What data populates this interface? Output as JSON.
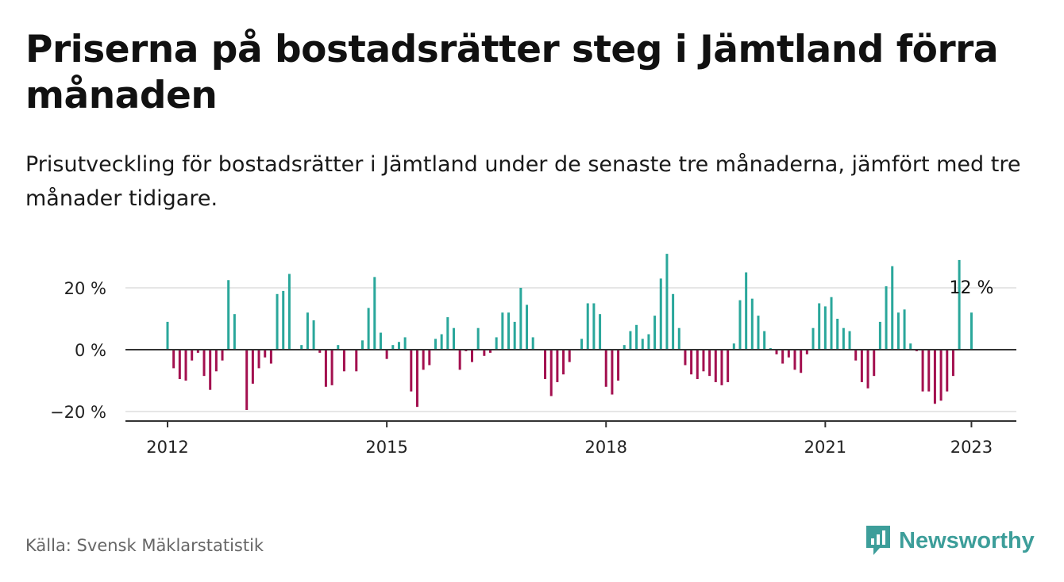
{
  "title": "Priserna på bostadsrätter steg i Jämtland förra månaden",
  "subtitle": "Prisutveckling för bostadsrätter i Jämtland under de senaste tre månaderna, jämfört med tre månader tidigare.",
  "source": "Källa: Svensk Mäklarstatistik",
  "logo": {
    "text": "Newsworthy",
    "icon": "newsworthy-logo-icon"
  },
  "colors": {
    "positive": "#2aa79b",
    "negative": "#a3104f",
    "axis": "#333333",
    "grid": "#dddddd",
    "logo": "#3d9e9a"
  },
  "chart_data": {
    "type": "bar",
    "start": "2012-01",
    "x_tick_labels": [
      "2012",
      "2015",
      "2018",
      "2021",
      "2023"
    ],
    "y_tick_labels": [
      "20 %",
      "0 %",
      "−20 %"
    ],
    "y_ticks": [
      20,
      0,
      -20
    ],
    "ylim": [
      -23,
      31
    ],
    "grid": true,
    "last_value_label": "12 %",
    "values": [
      9,
      -6,
      -9.5,
      -10,
      -3.5,
      -1,
      -8.5,
      -13,
      -7,
      -3.5,
      22.5,
      11.5,
      0,
      -19.5,
      -11,
      -6,
      -2.5,
      -4.5,
      18,
      19,
      24.5,
      0,
      1.5,
      12,
      9.5,
      -1,
      -12,
      -11.5,
      1.5,
      -7,
      0,
      -7,
      3,
      13.5,
      23.5,
      5.5,
      -3,
      1.5,
      2.5,
      4,
      -13.5,
      -18.5,
      -6.5,
      -5,
      3.5,
      5,
      10.5,
      7,
      -6.5,
      -0.5,
      -4,
      7,
      -2,
      -1,
      4,
      12,
      12,
      9,
      20,
      14.5,
      4,
      0,
      -9.5,
      -15,
      -10.5,
      -8,
      -4,
      0,
      3.5,
      15,
      15,
      11.5,
      -12,
      -14.5,
      -10,
      1.5,
      6,
      8,
      3.5,
      5,
      11,
      23,
      31,
      18,
      7,
      -5,
      -8,
      -9.5,
      -7,
      -8.5,
      -10.5,
      -11.5,
      -10.5,
      2,
      16,
      25,
      16.5,
      11,
      6,
      0.5,
      -1.5,
      -4.5,
      -2.5,
      -6.5,
      -7.5,
      -1.5,
      7,
      15,
      14,
      17,
      10,
      7,
      6,
      -3.5,
      -10.5,
      -12.5,
      -8.5,
      9,
      20.5,
      27,
      12,
      13,
      2,
      -0.5,
      -13.5,
      -13.5,
      -17.5,
      -16.5,
      -13.5,
      -8.5,
      29,
      0,
      12
    ]
  }
}
